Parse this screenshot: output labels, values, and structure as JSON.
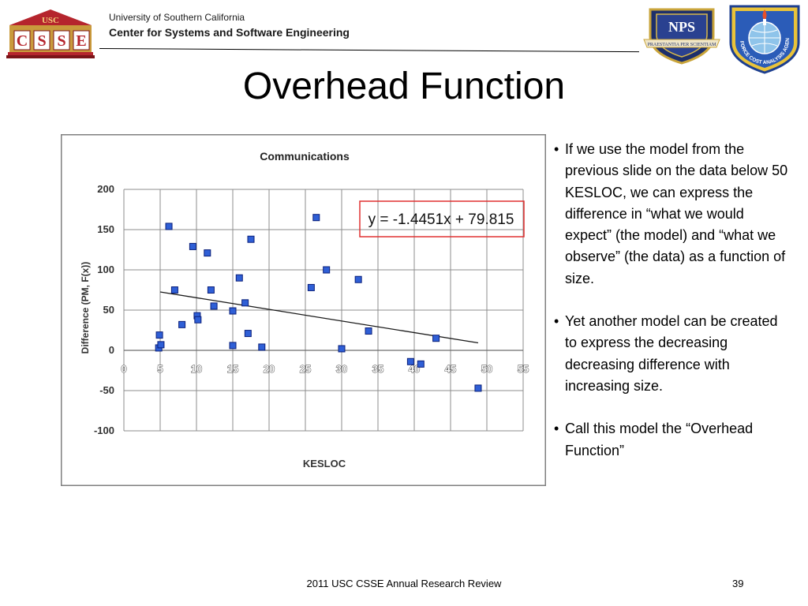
{
  "header": {
    "university": "University of Southern California",
    "center": "Center for Systems and Software Engineering",
    "usc_logo": {
      "top_text": "USC",
      "letters": [
        "C",
        "S",
        "S",
        "E"
      ]
    },
    "nps_logo_text": "NPS",
    "nps_motto": "PRAESTANTIA PER SCIENTIAM",
    "afit_motto": "AIR FORCE COST ANALYSIS AGENCY"
  },
  "slide": {
    "title": "Overhead Function"
  },
  "bullets": [
    "If we use the model from the previous slide on the data below 50 KESLOC, we can express the difference in “what we would expect” (the model) and “what we observe” (the data) as a function of size.",
    "Yet another model can be created to express the decreasing decreasing difference with increasing size.",
    "Call this model the “Overhead Function”"
  ],
  "footer": {
    "text": "2011 USC CSSE Annual Research Review",
    "page": "39"
  },
  "colors": {
    "point_fill": "#2f5fd6",
    "point_stroke": "#0a1f7a",
    "equation_box": "#e03030",
    "usc_red": "#b5252d",
    "usc_gold": "#c99a3c"
  },
  "chart_data": {
    "type": "scatter",
    "title": "Communications",
    "xlabel": "KESLOC",
    "ylabel": "Difference (PM, F(x))",
    "xlim": [
      0,
      55
    ],
    "ylim": [
      -100,
      200
    ],
    "xticks": [
      "0",
      "5",
      "10",
      "15",
      "20",
      "25",
      "30",
      "35",
      "40",
      "45",
      "50",
      "55"
    ],
    "yticks": [
      "200",
      "150",
      "100",
      "50",
      "0",
      "-50",
      "-100"
    ],
    "grid": true,
    "equation": "y = -1.4451x + 79.815",
    "trendline": {
      "slope": -1.4451,
      "intercept": 79.815,
      "x_range": [
        5,
        48.8
      ]
    },
    "points": [
      {
        "x": 4.9,
        "y": 19
      },
      {
        "x": 4.8,
        "y": 3
      },
      {
        "x": 5.1,
        "y": 7
      },
      {
        "x": 6.2,
        "y": 154
      },
      {
        "x": 7.0,
        "y": 75
      },
      {
        "x": 8.0,
        "y": 32
      },
      {
        "x": 9.5,
        "y": 129
      },
      {
        "x": 10.1,
        "y": 43
      },
      {
        "x": 10.2,
        "y": 38
      },
      {
        "x": 11.5,
        "y": 121
      },
      {
        "x": 12.0,
        "y": 75
      },
      {
        "x": 12.4,
        "y": 55
      },
      {
        "x": 15.0,
        "y": 49
      },
      {
        "x": 15.0,
        "y": 6
      },
      {
        "x": 15.9,
        "y": 90
      },
      {
        "x": 16.7,
        "y": 59
      },
      {
        "x": 17.1,
        "y": 21
      },
      {
        "x": 17.5,
        "y": 138
      },
      {
        "x": 19.0,
        "y": 4
      },
      {
        "x": 25.8,
        "y": 78
      },
      {
        "x": 26.5,
        "y": 165
      },
      {
        "x": 27.9,
        "y": 100
      },
      {
        "x": 30.0,
        "y": 2
      },
      {
        "x": 32.3,
        "y": 88
      },
      {
        "x": 33.7,
        "y": 24
      },
      {
        "x": 39.5,
        "y": -14
      },
      {
        "x": 40.9,
        "y": -17
      },
      {
        "x": 43.0,
        "y": 15
      },
      {
        "x": 48.8,
        "y": -47
      }
    ]
  }
}
